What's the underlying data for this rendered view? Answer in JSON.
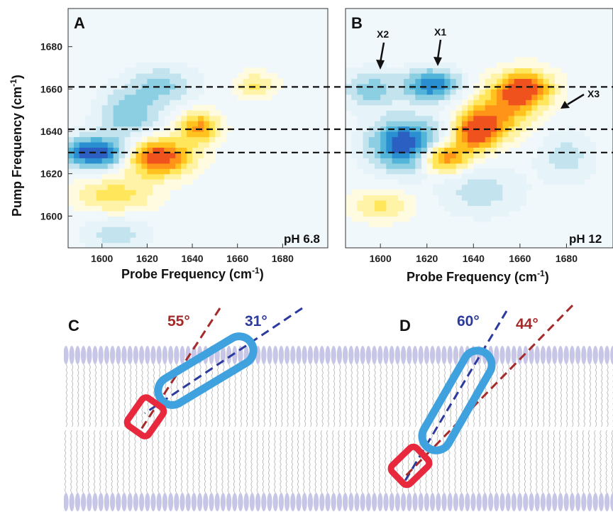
{
  "chart_data": [
    {
      "type": "heatmap",
      "panel": "A",
      "annotation": "pH 6.8",
      "xlabel": "Probe Frequency (cm",
      "xlabel_sup": "-1",
      "xlabel_tail": ")",
      "ylabel": "Pump Frequency (cm",
      "ylabel_sup": "-1",
      "ylabel_tail": ")",
      "xlim": [
        1585,
        1700
      ],
      "ylim": [
        1585,
        1698
      ],
      "xticks": [
        1600,
        1620,
        1640,
        1660,
        1680
      ],
      "yticks": [
        1600,
        1620,
        1640,
        1660,
        1680
      ],
      "dashed_lines_y": [
        1630,
        1641,
        1661
      ],
      "features": [
        {
          "x": 1597,
          "y": 1630,
          "amp": -1.0,
          "sx": 10,
          "sy": 5
        },
        {
          "x": 1612,
          "y": 1648,
          "amp": -0.45,
          "sx": 9,
          "sy": 8
        },
        {
          "x": 1627,
          "y": 1662,
          "amp": -0.35,
          "sx": 10,
          "sy": 6
        },
        {
          "x": 1625,
          "y": 1628,
          "amp": 1.0,
          "sx": 10,
          "sy": 6
        },
        {
          "x": 1643,
          "y": 1642,
          "amp": 0.7,
          "sx": 6,
          "sy": 5
        },
        {
          "x": 1668,
          "y": 1662,
          "amp": 0.35,
          "sx": 6,
          "sy": 4
        },
        {
          "x": 1606,
          "y": 1610,
          "amp": 0.4,
          "sx": 12,
          "sy": 6
        },
        {
          "x": 1606,
          "y": 1592,
          "amp": -0.25,
          "sx": 10,
          "sy": 6
        }
      ]
    },
    {
      "type": "heatmap",
      "panel": "B",
      "annotation": "pH 12",
      "xlabel": "Probe Frequency (cm",
      "xlabel_sup": "-1",
      "xlabel_tail": ")",
      "xlim": [
        1585,
        1700
      ],
      "ylim": [
        1585,
        1698
      ],
      "xticks": [
        1600,
        1620,
        1640,
        1660,
        1680
      ],
      "dashed_lines_y": [
        1630,
        1641,
        1661
      ],
      "markers": [
        "X1",
        "X2",
        "X3"
      ],
      "features": [
        {
          "x": 1611,
          "y": 1634,
          "amp": -1.0,
          "sx": 10,
          "sy": 8
        },
        {
          "x": 1622,
          "y": 1662,
          "amp": -0.8,
          "sx": 8,
          "sy": 5
        },
        {
          "x": 1596,
          "y": 1660,
          "amp": -0.4,
          "sx": 8,
          "sy": 6
        },
        {
          "x": 1627,
          "y": 1628,
          "amp": 0.9,
          "sx": 7,
          "sy": 5
        },
        {
          "x": 1641,
          "y": 1640,
          "amp": 1.0,
          "sx": 6,
          "sy": 6
        },
        {
          "x": 1662,
          "y": 1660,
          "amp": 1.0,
          "sx": 8,
          "sy": 6
        },
        {
          "x": 1651,
          "y": 1648,
          "amp": 0.6,
          "sx": 9,
          "sy": 8
        },
        {
          "x": 1600,
          "y": 1605,
          "amp": 0.35,
          "sx": 9,
          "sy": 5
        },
        {
          "x": 1643,
          "y": 1612,
          "amp": -0.25,
          "sx": 12,
          "sy": 8
        },
        {
          "x": 1680,
          "y": 1628,
          "amp": -0.25,
          "sx": 8,
          "sy": 8
        }
      ]
    }
  ],
  "membrane_panels": [
    {
      "letter": "C",
      "angles": [
        {
          "text": "55°",
          "color": "#a52a2a"
        },
        {
          "text": "31°",
          "color": "#2b3a9c"
        }
      ]
    },
    {
      "letter": "D",
      "angles": [
        {
          "text": "60°",
          "color": "#2b3a9c"
        },
        {
          "text": "44°",
          "color": "#a52a2a"
        }
      ]
    }
  ],
  "colors": {
    "helix_outline": "#3fa2de",
    "anchor_outline": "#e8283c",
    "dashed_red": "#a52a2a",
    "dashed_blue": "#2b3a9c",
    "lipid_head": "#c7c6e6",
    "lipid_tail": "#b9b9b9"
  }
}
